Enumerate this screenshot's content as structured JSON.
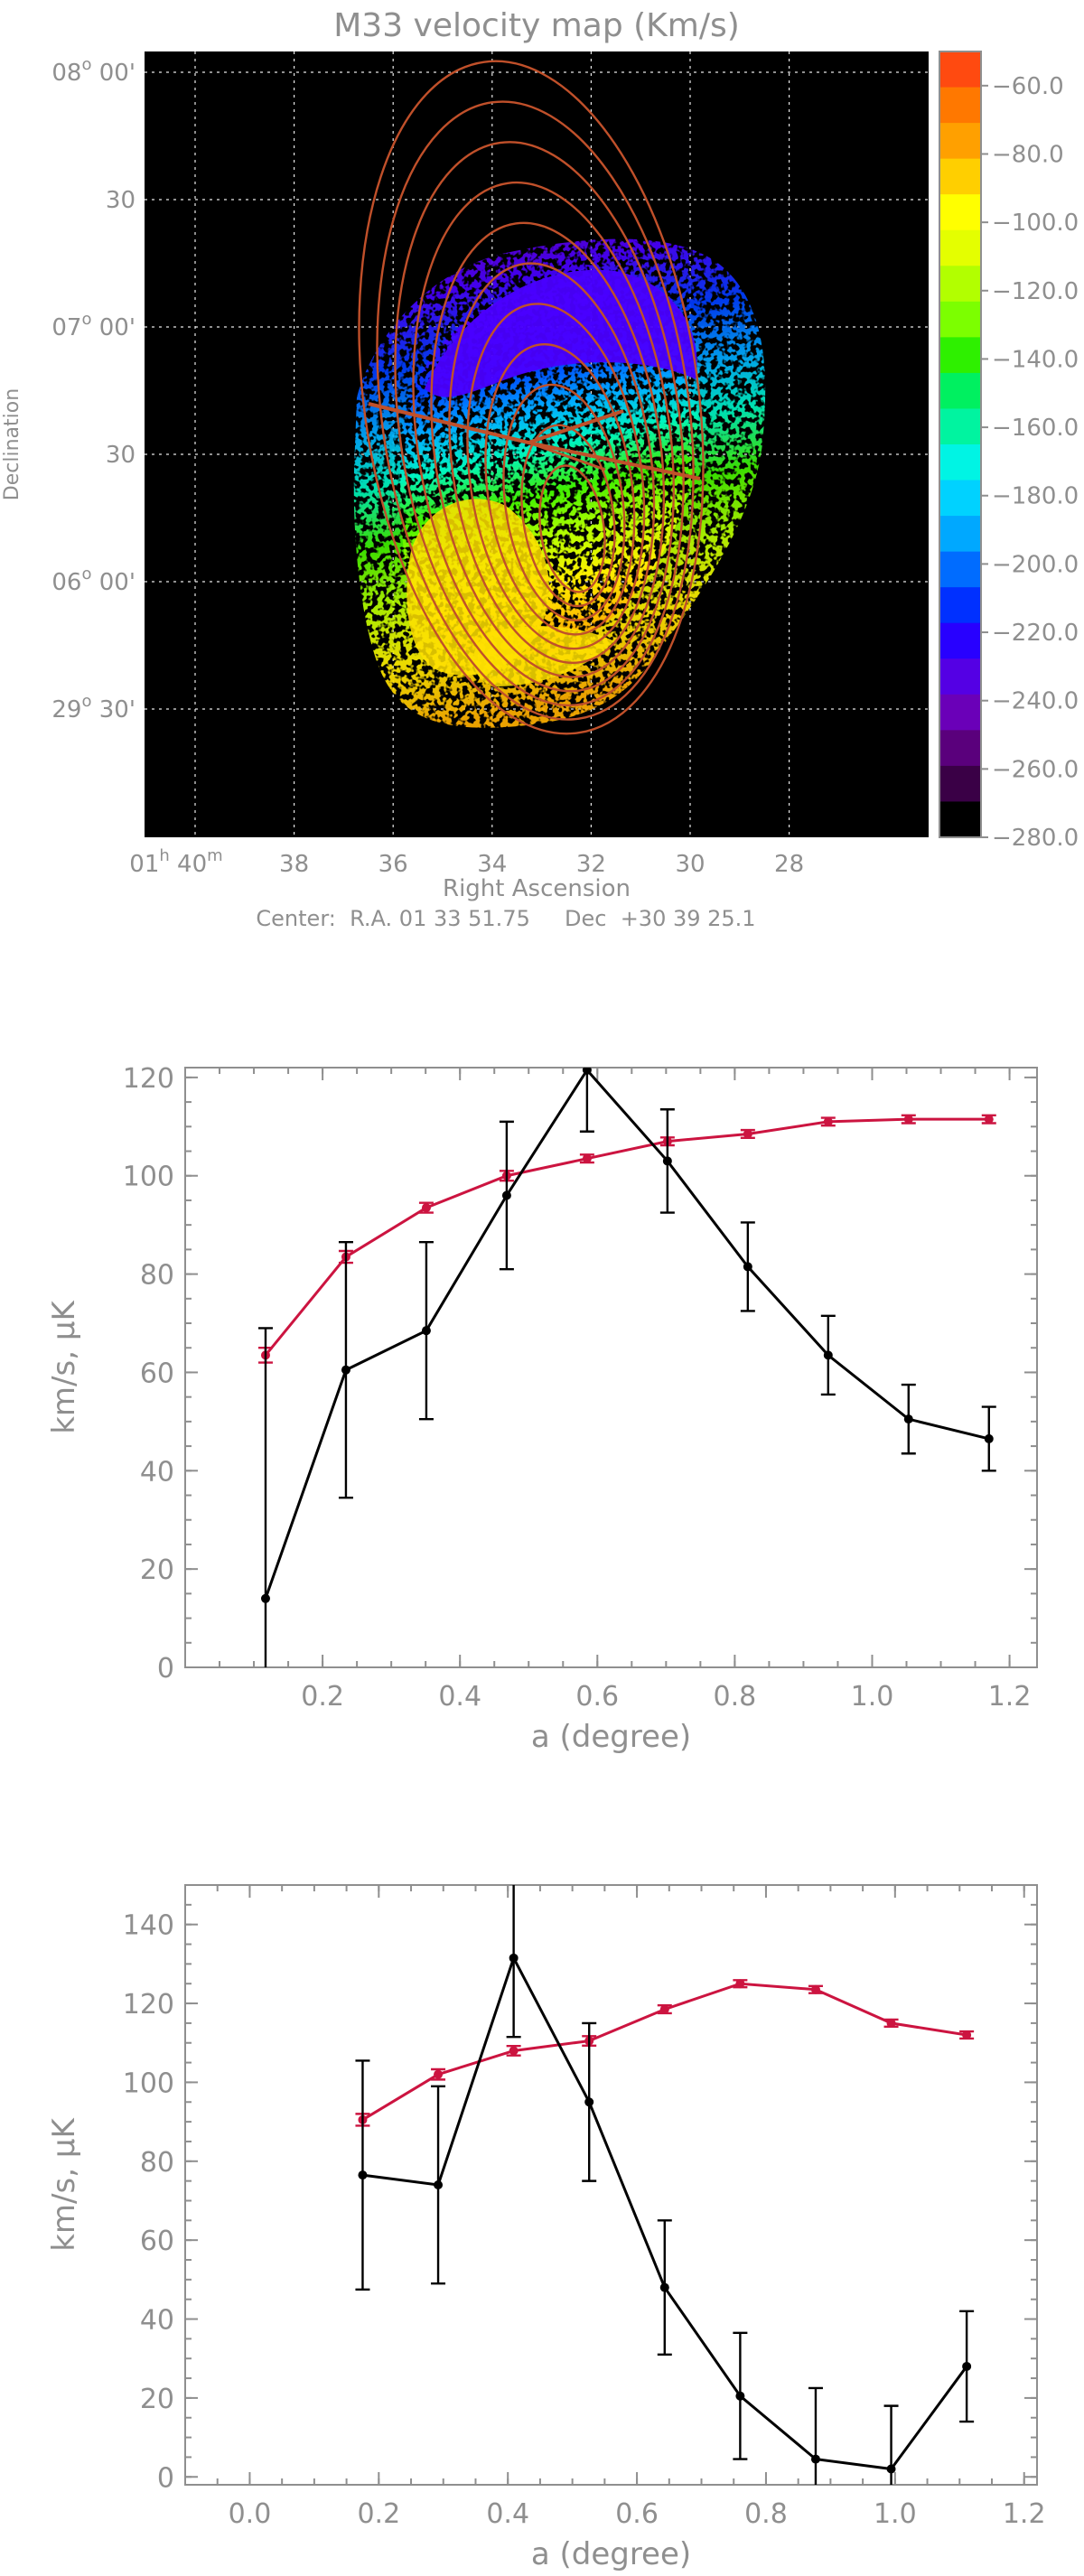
{
  "chart_data": [
    {
      "type": "heatmap",
      "title": "M33 velocity map (Km/s)",
      "xlabel": "Right Ascension",
      "ylabel": "Declination",
      "footer": "Center:  R.A. 01 33 51.75     Dec  +30 39 25.1",
      "x_ticks": [
        {
          "label": "01",
          "sup": "h",
          "label2": "40",
          "sup2": "m",
          "ra_min": 40
        },
        {
          "label": "38",
          "ra_min": 38
        },
        {
          "label": "36",
          "ra_min": 36
        },
        {
          "label": "34",
          "ra_min": 34
        },
        {
          "label": "32",
          "ra_min": 32
        },
        {
          "label": "30",
          "ra_min": 30
        },
        {
          "label": "28",
          "ra_min": 28
        }
      ],
      "y_ticks": [
        {
          "label": "08",
          "sup": "o",
          "rest": " 00'",
          "dec_min": 0
        },
        {
          "label": "30",
          "rest": "",
          "dec_min": 30
        },
        {
          "label": "07",
          "sup": "o",
          "rest": " 00'",
          "dec_min": 60
        },
        {
          "label": "30",
          "rest": "",
          "dec_min": 90
        },
        {
          "label": "06",
          "sup": "o",
          "rest": " 00'",
          "dec_min": 120
        },
        {
          "label": "29",
          "sup": "o",
          "rest": " 30'",
          "dec_min": 150
        }
      ],
      "colorbar": {
        "range": [
          -280,
          -50
        ],
        "tick_labels": [
          "-60.0",
          "-80.0",
          "-100.0",
          "-120.0",
          "-140.0",
          "-160.0",
          "-180.0",
          "-200.0",
          "-220.0",
          "-240.0",
          "-260.0",
          "-280.0"
        ],
        "colors": [
          "#ff4a10",
          "#ff7800",
          "#ffa000",
          "#ffcf00",
          "#ffff00",
          "#e4ff00",
          "#b2ff00",
          "#7cff00",
          "#2ef000",
          "#00f060",
          "#00f4a0",
          "#00f4e4",
          "#00d2ff",
          "#00a8ff",
          "#006cff",
          "#0030ff",
          "#2800ff",
          "#5400e4",
          "#6a00b8",
          "#5a007c",
          "#3a0046",
          "#000000"
        ]
      },
      "ring_color": "#c0502a"
    },
    {
      "type": "line",
      "xlabel": "a (degree)",
      "ylabel": "km/s, µK",
      "xlim": [
        0,
        1.24
      ],
      "ylim": [
        0,
        122
      ],
      "x_ticks": [
        "0.2",
        "0.4",
        "0.6",
        "0.8",
        "1.0",
        "1.2"
      ],
      "x_tick_values": [
        0.2,
        0.4,
        0.6,
        0.8,
        1.0,
        1.2
      ],
      "y_ticks": [
        "0",
        "20",
        "40",
        "60",
        "80",
        "100",
        "120"
      ],
      "y_tick_values": [
        0,
        20,
        40,
        60,
        80,
        100,
        120
      ],
      "series": [
        {
          "color": "#cc1440",
          "x": [
            0.117,
            0.234,
            0.351,
            0.468,
            0.585,
            0.702,
            0.819,
            0.936,
            1.053,
            1.17
          ],
          "y": [
            63.5,
            83.5,
            93.5,
            100,
            103.5,
            107,
            108.5,
            111,
            111.5,
            111.5
          ],
          "err": [
            1.5,
            1.2,
            1,
            1,
            0.8,
            0.8,
            0.8,
            0.8,
            0.8,
            0.8
          ]
        },
        {
          "color": "#000000",
          "x": [
            0.117,
            0.234,
            0.351,
            0.468,
            0.585,
            0.702,
            0.819,
            0.936,
            1.053,
            1.17
          ],
          "y": [
            14,
            60.5,
            68.5,
            96,
            121.5,
            103,
            81.5,
            63.5,
            50.5,
            46.5
          ],
          "err": [
            55,
            26,
            18,
            15,
            12.5,
            10.5,
            9,
            8,
            7,
            6.5
          ]
        }
      ]
    },
    {
      "type": "line",
      "xlabel": "a (degree)",
      "ylabel": "km/s, µK",
      "xlim": [
        -0.1,
        1.22
      ],
      "ylim": [
        -2,
        150
      ],
      "x_ticks": [
        "0.0",
        "0.2",
        "0.4",
        "0.6",
        "0.8",
        "1.0",
        "1.2"
      ],
      "x_tick_values": [
        0.0,
        0.2,
        0.4,
        0.6,
        0.8,
        1.0,
        1.2
      ],
      "y_ticks": [
        "0",
        "20",
        "40",
        "60",
        "80",
        "100",
        "120",
        "140"
      ],
      "y_tick_values": [
        0,
        20,
        40,
        60,
        80,
        100,
        120,
        140
      ],
      "series": [
        {
          "color": "#cc1440",
          "x": [
            0.175,
            0.292,
            0.409,
            0.526,
            0.643,
            0.76,
            0.877,
            0.994,
            1.111
          ],
          "y": [
            90.5,
            102,
            108,
            110.5,
            118.5,
            125,
            123.5,
            115,
            112
          ],
          "err": [
            1.5,
            1.3,
            1.2,
            1.2,
            1,
            0.9,
            0.9,
            0.9,
            0.9
          ]
        },
        {
          "color": "#000000",
          "x": [
            0.175,
            0.292,
            0.409,
            0.526,
            0.643,
            0.76,
            0.877,
            0.994,
            1.111
          ],
          "y": [
            76.5,
            74,
            131.5,
            95,
            48,
            20.5,
            4.5,
            2,
            28
          ],
          "err": [
            29,
            25,
            20,
            20,
            17,
            16,
            18,
            16,
            14
          ]
        }
      ]
    }
  ]
}
